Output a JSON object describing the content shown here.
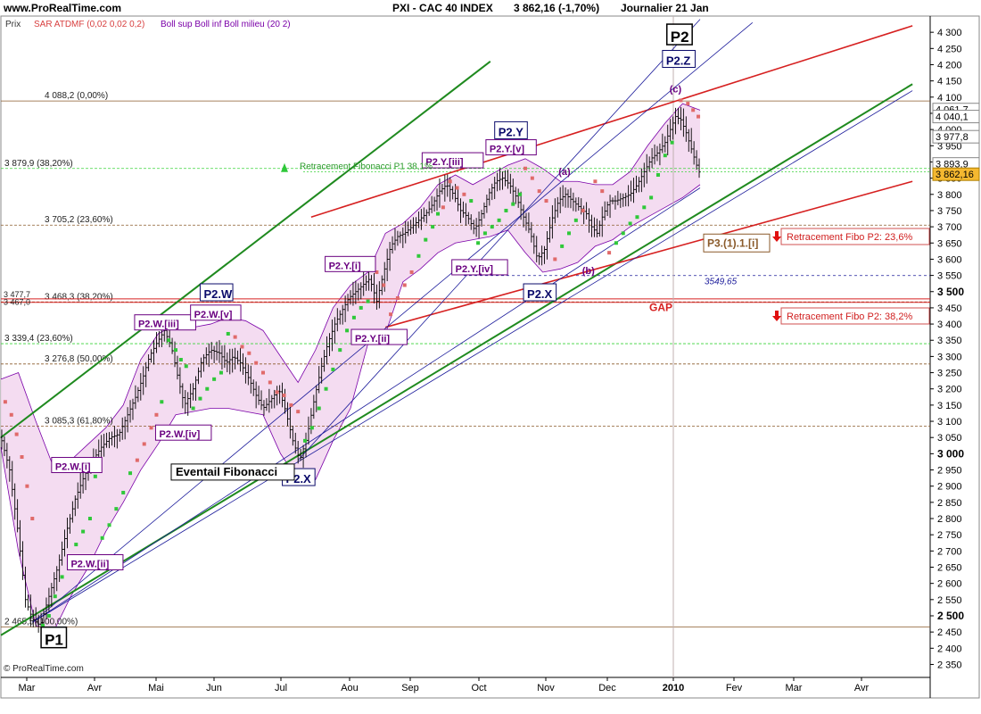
{
  "header": {
    "site": "www.ProRealTime.com",
    "title": "PXI - CAC 40 INDEX",
    "quote": "3 862,16 (-1,70%)",
    "period": "Journalier  21 Jan"
  },
  "legend": {
    "prix": "Prix",
    "sar": "SAR ATDMF (0,02 0,02 0,2)",
    "boll": "Boll sup Boll inf Boll milieu (20 2)"
  },
  "copyright": "© ProRealTime.com",
  "colors": {
    "price": "#000000",
    "sar_up": "#2fc83a",
    "sar_down": "#e06a6a",
    "boll_line": "#7a00a8",
    "boll_fill": "#f2d6ee",
    "trend_green": "#1f8a1f",
    "trend_red": "#d62020",
    "trend_blue": "#1a1a9a",
    "fibo_green": "#3ad33a",
    "fibo_brown": "#8a5a2a",
    "label_purple": "#6a0080",
    "label_navy": "#0a0a6a"
  },
  "chart_data": {
    "type": "line",
    "x_axis": {
      "labels": [
        "Mar",
        "Avr",
        "Mai",
        "Jun",
        "Jul",
        "Aou",
        "Sep",
        "Oct",
        "Nov",
        "Dec",
        "2010",
        "Fev",
        "Mar",
        "Avr"
      ]
    },
    "y_axis": {
      "ylim": [
        2310,
        4350
      ],
      "ticks": [
        2350,
        2400,
        2450,
        2500,
        2550,
        2600,
        2650,
        2700,
        2750,
        2800,
        2850,
        2900,
        2950,
        3000,
        3050,
        3100,
        3150,
        3200,
        3250,
        3300,
        3350,
        3400,
        3450,
        3500,
        3550,
        3600,
        3650,
        3700,
        3750,
        3800,
        3850,
        3900,
        3950,
        4000,
        4050,
        4100,
        4150,
        4200,
        4250,
        4300
      ],
      "tick_labels": [
        "2 350",
        "2 400",
        "2 450",
        "2 500",
        "2 550",
        "2 600",
        "2 650",
        "2 700",
        "2 750",
        "2 800",
        "2 850",
        "2 900",
        "2 950",
        "3 000",
        "3 050",
        "3 100",
        "3 150",
        "3 200",
        "3 250",
        "3 300",
        "3 350",
        "3 400",
        "3 450",
        "3 500",
        "3 550",
        "3 600",
        "3 650",
        "3 700",
        "3 750",
        "3 800",
        "3 850",
        "3 900",
        "3 950",
        "4 000",
        "4 050",
        "4 100",
        "4 150",
        "4 200",
        "4 250",
        "4 300"
      ],
      "bold_labels": [
        "2 500",
        "3 000",
        "3 500"
      ]
    },
    "price_path": [
      [
        0,
        3050
      ],
      [
        10,
        2950
      ],
      [
        20,
        2750
      ],
      [
        28,
        2550
      ],
      [
        36,
        2490
      ],
      [
        45,
        2470
      ],
      [
        55,
        2560
      ],
      [
        65,
        2650
      ],
      [
        75,
        2760
      ],
      [
        85,
        2860
      ],
      [
        95,
        2930
      ],
      [
        105,
        2980
      ],
      [
        115,
        3020
      ],
      [
        125,
        3050
      ],
      [
        135,
        3060
      ],
      [
        145,
        3120
      ],
      [
        155,
        3180
      ],
      [
        163,
        3240
      ],
      [
        170,
        3300
      ],
      [
        178,
        3340
      ],
      [
        187,
        3380
      ],
      [
        195,
        3330
      ],
      [
        203,
        3230
      ],
      [
        210,
        3150
      ],
      [
        220,
        3200
      ],
      [
        230,
        3290
      ],
      [
        240,
        3320
      ],
      [
        250,
        3310
      ],
      [
        258,
        3280
      ],
      [
        266,
        3300
      ],
      [
        274,
        3280
      ],
      [
        284,
        3230
      ],
      [
        292,
        3180
      ],
      [
        300,
        3140
      ],
      [
        310,
        3170
      ],
      [
        318,
        3200
      ],
      [
        326,
        3130
      ],
      [
        334,
        3040
      ],
      [
        342,
        2980
      ],
      [
        350,
        3050
      ],
      [
        358,
        3160
      ],
      [
        366,
        3260
      ],
      [
        374,
        3340
      ],
      [
        382,
        3400
      ],
      [
        390,
        3440
      ],
      [
        398,
        3480
      ],
      [
        406,
        3500
      ],
      [
        414,
        3520
      ],
      [
        422,
        3540
      ],
      [
        430,
        3470
      ],
      [
        438,
        3560
      ],
      [
        446,
        3640
      ],
      [
        454,
        3670
      ],
      [
        462,
        3680
      ],
      [
        470,
        3700
      ],
      [
        478,
        3720
      ],
      [
        486,
        3740
      ],
      [
        494,
        3770
      ],
      [
        502,
        3810
      ],
      [
        510,
        3830
      ],
      [
        518,
        3800
      ],
      [
        526,
        3750
      ],
      [
        534,
        3730
      ],
      [
        542,
        3690
      ],
      [
        550,
        3740
      ],
      [
        558,
        3800
      ],
      [
        566,
        3840
      ],
      [
        574,
        3850
      ],
      [
        582,
        3830
      ],
      [
        590,
        3790
      ],
      [
        598,
        3730
      ],
      [
        606,
        3680
      ],
      [
        614,
        3600
      ],
      [
        622,
        3630
      ],
      [
        630,
        3720
      ],
      [
        638,
        3780
      ],
      [
        646,
        3800
      ],
      [
        654,
        3780
      ],
      [
        662,
        3760
      ],
      [
        670,
        3740
      ],
      [
        676,
        3700
      ],
      [
        682,
        3680
      ],
      [
        688,
        3730
      ],
      [
        696,
        3780
      ],
      [
        704,
        3780
      ],
      [
        712,
        3790
      ],
      [
        720,
        3800
      ],
      [
        728,
        3830
      ],
      [
        736,
        3870
      ],
      [
        744,
        3910
      ],
      [
        752,
        3930
      ],
      [
        760,
        3960
      ],
      [
        766,
        4000
      ],
      [
        772,
        4040
      ],
      [
        778,
        4030
      ],
      [
        784,
        3990
      ],
      [
        790,
        3940
      ],
      [
        796,
        3890
      ],
      [
        800,
        3862
      ]
    ],
    "sar_points": [
      [
        5,
        3160
      ],
      [
        12,
        3120
      ],
      [
        18,
        3060
      ],
      [
        24,
        2990
      ],
      [
        30,
        2900
      ],
      [
        36,
        2800
      ],
      [
        48,
        2470
      ],
      [
        55,
        2500
      ],
      [
        62,
        2560
      ],
      [
        70,
        2620
      ],
      [
        78,
        2670
      ],
      [
        86,
        2720
      ],
      [
        94,
        2760
      ],
      [
        102,
        2800
      ],
      [
        108,
        2930
      ],
      [
        116,
        2740
      ],
      [
        124,
        2780
      ],
      [
        132,
        2830
      ],
      [
        140,
        2880
      ],
      [
        148,
        2940
      ],
      [
        156,
        2980
      ],
      [
        164,
        3030
      ],
      [
        172,
        3080
      ],
      [
        178,
        3120
      ],
      [
        184,
        3160
      ],
      [
        192,
        3350
      ],
      [
        200,
        3320
      ],
      [
        206,
        3290
      ],
      [
        212,
        3270
      ],
      [
        220,
        3140
      ],
      [
        228,
        3170
      ],
      [
        236,
        3200
      ],
      [
        244,
        3230
      ],
      [
        252,
        3250
      ],
      [
        260,
        3370
      ],
      [
        268,
        3360
      ],
      [
        276,
        3330
      ],
      [
        284,
        3310
      ],
      [
        292,
        3280
      ],
      [
        300,
        3250
      ],
      [
        308,
        3220
      ],
      [
        316,
        3190
      ],
      [
        324,
        3180
      ],
      [
        332,
        3150
      ],
      [
        340,
        3130
      ],
      [
        348,
        3040
      ],
      [
        356,
        3080
      ],
      [
        364,
        3140
      ],
      [
        372,
        3200
      ],
      [
        380,
        3260
      ],
      [
        388,
        3320
      ],
      [
        396,
        3380
      ],
      [
        404,
        3420
      ],
      [
        412,
        3450
      ],
      [
        420,
        3470
      ],
      [
        430,
        3560
      ],
      [
        438,
        3520
      ],
      [
        446,
        3430
      ],
      [
        454,
        3480
      ],
      [
        462,
        3520
      ],
      [
        470,
        3560
      ],
      [
        478,
        3610
      ],
      [
        486,
        3660
      ],
      [
        494,
        3700
      ],
      [
        500,
        3740
      ],
      [
        506,
        3760
      ],
      [
        514,
        3840
      ],
      [
        522,
        3820
      ],
      [
        530,
        3800
      ],
      [
        538,
        3780
      ],
      [
        546,
        3650
      ],
      [
        554,
        3680
      ],
      [
        562,
        3700
      ],
      [
        570,
        3720
      ],
      [
        578,
        3750
      ],
      [
        586,
        3770
      ],
      [
        594,
        3800
      ],
      [
        600,
        3880
      ],
      [
        608,
        3850
      ],
      [
        616,
        3810
      ],
      [
        624,
        3780
      ],
      [
        634,
        3600
      ],
      [
        642,
        3640
      ],
      [
        650,
        3680
      ],
      [
        658,
        3720
      ],
      [
        666,
        3750
      ],
      [
        680,
        3840
      ],
      [
        688,
        3810
      ],
      [
        696,
        3620
      ],
      [
        704,
        3650
      ],
      [
        712,
        3680
      ],
      [
        720,
        3710
      ],
      [
        728,
        3730
      ],
      [
        736,
        3760
      ],
      [
        744,
        3790
      ],
      [
        752,
        3860
      ],
      [
        760,
        3920
      ],
      [
        768,
        3960
      ],
      [
        778,
        4090
      ],
      [
        786,
        4080
      ],
      [
        792,
        4060
      ],
      [
        798,
        4040
      ]
    ],
    "sar_down_until_index": 5,
    "sar_up_ranges": [
      [
        6,
        19
      ],
      [
        24,
        34
      ],
      [
        45,
        54
      ],
      [
        61,
        64
      ],
      [
        69,
        76
      ],
      [
        82,
        84
      ],
      [
        89,
        97
      ]
    ],
    "sar_down_ranges": [
      [
        0,
        5
      ],
      [
        20,
        23
      ],
      [
        35,
        44
      ],
      [
        55,
        60
      ],
      [
        65,
        68
      ],
      [
        77,
        81
      ],
      [
        85,
        88
      ],
      [
        98,
        101
      ]
    ],
    "boll_upper": [
      [
        0,
        3230
      ],
      [
        20,
        3250
      ],
      [
        40,
        3100
      ],
      [
        60,
        2960
      ],
      [
        80,
        2980
      ],
      [
        100,
        3030
      ],
      [
        120,
        3080
      ],
      [
        140,
        3150
      ],
      [
        160,
        3290
      ],
      [
        180,
        3370
      ],
      [
        200,
        3400
      ],
      [
        220,
        3390
      ],
      [
        240,
        3400
      ],
      [
        260,
        3420
      ],
      [
        280,
        3410
      ],
      [
        300,
        3380
      ],
      [
        320,
        3300
      ],
      [
        340,
        3220
      ],
      [
        360,
        3320
      ],
      [
        380,
        3450
      ],
      [
        400,
        3520
      ],
      [
        420,
        3560
      ],
      [
        440,
        3680
      ],
      [
        460,
        3710
      ],
      [
        480,
        3760
      ],
      [
        500,
        3830
      ],
      [
        520,
        3860
      ],
      [
        540,
        3830
      ],
      [
        560,
        3860
      ],
      [
        580,
        3890
      ],
      [
        600,
        3910
      ],
      [
        620,
        3880
      ],
      [
        640,
        3840
      ],
      [
        660,
        3840
      ],
      [
        680,
        3830
      ],
      [
        700,
        3830
      ],
      [
        720,
        3870
      ],
      [
        740,
        3950
      ],
      [
        760,
        4020
      ],
      [
        780,
        4080
      ],
      [
        800,
        4060
      ]
    ],
    "boll_lower": [
      [
        0,
        3020
      ],
      [
        20,
        2700
      ],
      [
        40,
        2470
      ],
      [
        60,
        2450
      ],
      [
        80,
        2560
      ],
      [
        100,
        2650
      ],
      [
        120,
        2760
      ],
      [
        140,
        2850
      ],
      [
        160,
        2950
      ],
      [
        180,
        3030
      ],
      [
        200,
        3120
      ],
      [
        220,
        3130
      ],
      [
        240,
        3140
      ],
      [
        260,
        3140
      ],
      [
        280,
        3130
      ],
      [
        300,
        3120
      ],
      [
        320,
        3000
      ],
      [
        340,
        2920
      ],
      [
        360,
        2920
      ],
      [
        380,
        3040
      ],
      [
        400,
        3140
      ],
      [
        420,
        3340
      ],
      [
        440,
        3370
      ],
      [
        460,
        3530
      ],
      [
        480,
        3570
      ],
      [
        500,
        3620
      ],
      [
        520,
        3650
      ],
      [
        540,
        3660
      ],
      [
        560,
        3670
      ],
      [
        580,
        3690
      ],
      [
        600,
        3620
      ],
      [
        620,
        3560
      ],
      [
        640,
        3570
      ],
      [
        660,
        3590
      ],
      [
        680,
        3640
      ],
      [
        700,
        3660
      ],
      [
        720,
        3700
      ],
      [
        740,
        3730
      ],
      [
        760,
        3760
      ],
      [
        780,
        3790
      ],
      [
        800,
        3830
      ]
    ],
    "hlines": [
      {
        "label": "4 088,2 (0,00%)",
        "value": 4088.2,
        "color": "#8a5a2a"
      },
      {
        "label": "3 879,9 (38,20%)",
        "value": 3879.9,
        "color": "#3ad33a"
      },
      {
        "label": "3 705,2 (23,60%)",
        "value": 3705.2,
        "color": "#8a5a2a"
      },
      {
        "label": "3 468,3 (38,20%)",
        "value": 3468.3,
        "color": "#8a5a2a"
      },
      {
        "label": "3 339,4 (23,60%)",
        "value": 3339.4,
        "color": "#3ad33a"
      },
      {
        "label": "3 276,8 (50,00%)",
        "value": 3276.8,
        "color": "#8a5a2a"
      },
      {
        "label": "3 085,3 (61,80%)",
        "value": 3085.3,
        "color": "#8a5a2a"
      },
      {
        "label": "2 465,5 (100,00%)",
        "value": 2465.5,
        "color": "#8a5a2a"
      }
    ],
    "gap_lines": [
      3477.7,
      3467.0
    ],
    "gap_labels": [
      "3 477,7",
      "3 467,0"
    ],
    "fibo_p1_line_value": 3870,
    "dotted_3549": {
      "value": 3549.65,
      "label": "3549,65"
    },
    "right_price_tags": [
      {
        "label": "4 061,7",
        "value": 4061.7
      },
      {
        "label": "4 040,1",
        "value": 4040.1
      },
      {
        "label": "3 977,8",
        "value": 3977.8
      },
      {
        "label": "3 893,9",
        "value": 3893.9
      },
      {
        "label": "3 862,16",
        "value": 3862.16
      }
    ],
    "annotations": {
      "fibo_p1": "Retracement Fibonacci P1 38,1%",
      "fibo_p2_236": "Retracement Fibo P2: 23,6%",
      "fibo_p2_382": "Retracement Fibo P2: 38,2%",
      "gap": "GAP",
      "eventail": "Eventail Fibonacci",
      "dotted_label": "3549,65",
      "p3": "P3.(1).1.[i]"
    },
    "wave_labels": [
      {
        "text": "P1",
        "x": 46,
        "y": 2410,
        "style": "big"
      },
      {
        "text": "P2",
        "x": 762,
        "y": 4270,
        "style": "big"
      },
      {
        "text": "P2.Z",
        "x": 757,
        "y": 4200,
        "style": "navy"
      },
      {
        "text": "P2.W",
        "x": 228,
        "y": 3480,
        "style": "navy"
      },
      {
        "text": "P2.Y",
        "x": 565,
        "y": 3980,
        "style": "navy"
      },
      {
        "text": "P2.X",
        "x": 322,
        "y": 2910,
        "style": "navy"
      },
      {
        "text": "P2.X",
        "x": 598,
        "y": 3480,
        "style": "navy"
      },
      {
        "text": "P2.W.[i]",
        "x": 58,
        "y": 2950,
        "style": "purple"
      },
      {
        "text": "P2.W.[ii]",
        "x": 76,
        "y": 2650,
        "style": "purple"
      },
      {
        "text": "P2.W.[iii]",
        "x": 153,
        "y": 3390,
        "style": "purple"
      },
      {
        "text": "P2.W.[iv]",
        "x": 177,
        "y": 3050,
        "style": "purple"
      },
      {
        "text": "P2.W.[v]",
        "x": 217,
        "y": 3420,
        "style": "purple"
      },
      {
        "text": "P2.Y.[i]",
        "x": 371,
        "y": 3570,
        "style": "purple"
      },
      {
        "text": "P2.Y.[ii]",
        "x": 401,
        "y": 3345,
        "style": "purple"
      },
      {
        "text": "P2.Y.[iii]",
        "x": 482,
        "y": 3890,
        "style": "purple"
      },
      {
        "text": "P2.Y.[iv]",
        "x": 516,
        "y": 3560,
        "style": "purple"
      },
      {
        "text": "P2.Y.[v]",
        "x": 555,
        "y": 3930,
        "style": "purple"
      },
      {
        "text": "(a)",
        "x": 638,
        "y": 3860,
        "style": "circle"
      },
      {
        "text": "(b)",
        "x": 665,
        "y": 3555,
        "style": "circle"
      },
      {
        "text": "(c)",
        "x": 765,
        "y": 4115,
        "style": "circle"
      }
    ]
  }
}
